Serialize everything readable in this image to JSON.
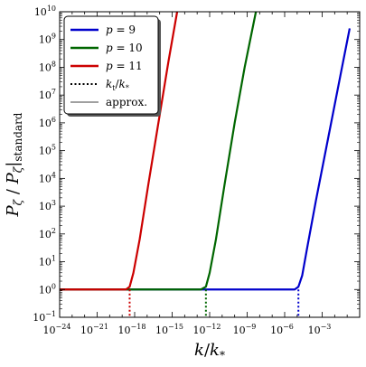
{
  "chart_data": {
    "type": "line",
    "title": "",
    "xlabel": "k/k*",
    "ylabel": "Pζ / Pζ|standard",
    "xscale": "log",
    "yscale": "log",
    "xlim_exp": [
      -24,
      0
    ],
    "ylim_exp": [
      -1,
      10
    ],
    "x_ticks": [
      {
        "exp": -24,
        "label": "10^-24"
      },
      {
        "exp": -21,
        "label": "10^-21"
      },
      {
        "exp": -18,
        "label": "10^-18"
      },
      {
        "exp": -15,
        "label": "10^-15"
      },
      {
        "exp": -12,
        "label": "10^-12"
      },
      {
        "exp": -9,
        "label": "10^-9"
      },
      {
        "exp": -6,
        "label": "10^-6"
      },
      {
        "exp": -3,
        "label": "10^-3"
      }
    ],
    "y_ticks": [
      {
        "exp": -1,
        "label": "10^-1"
      },
      {
        "exp": 0,
        "label": "10^0"
      },
      {
        "exp": 1,
        "label": "10^1"
      },
      {
        "exp": 2,
        "label": "10^2"
      },
      {
        "exp": 3,
        "label": "10^3"
      },
      {
        "exp": 4,
        "label": "10^4"
      },
      {
        "exp": 5,
        "label": "10^5"
      },
      {
        "exp": 6,
        "label": "10^6"
      },
      {
        "exp": 7,
        "label": "10^7"
      },
      {
        "exp": 8,
        "label": "10^8"
      },
      {
        "exp": 9,
        "label": "10^9"
      },
      {
        "exp": 10,
        "label": "10^10"
      }
    ],
    "series": [
      {
        "name": "p = 9",
        "color": "#0000cc",
        "x_exp": [
          -24,
          -5.2,
          -4.9,
          -4.6,
          -4.2,
          -3.5,
          -2.5,
          -1.5,
          -0.8
        ],
        "y_exp": [
          0,
          0,
          0.1,
          0.5,
          1.5,
          3.2,
          5.5,
          7.8,
          9.4
        ],
        "kt_exp": -4.9
      },
      {
        "name": "p = 10",
        "color": "#006600",
        "x_exp": [
          -24,
          -12.7,
          -12.3,
          -12.0,
          -11.5,
          -10.8,
          -10.0,
          -9.2,
          -8.3
        ],
        "y_exp": [
          0,
          0,
          0.1,
          0.6,
          1.8,
          3.8,
          6.0,
          8.0,
          10.0
        ],
        "kt_exp": -12.3
      },
      {
        "name": "p = 11",
        "color": "#cc0000",
        "x_exp": [
          -24,
          -18.7,
          -18.4,
          -18.1,
          -17.6,
          -16.9,
          -16.1,
          -15.3,
          -14.6
        ],
        "y_exp": [
          0,
          0,
          0.1,
          0.6,
          1.8,
          3.8,
          6.0,
          8.2,
          10.0
        ],
        "kt_exp": -18.4
      }
    ],
    "legend": {
      "placement": "top-left",
      "entries": [
        {
          "label": "p = 9",
          "style": "solid",
          "color": "#0000cc"
        },
        {
          "label": "p = 10",
          "style": "solid",
          "color": "#006600"
        },
        {
          "label": "p = 11",
          "style": "solid",
          "color": "#cc0000"
        },
        {
          "label": "kt/k*",
          "style": "dotted",
          "color": "#000000"
        },
        {
          "label": "approx.",
          "style": "thin",
          "color": "#000000"
        }
      ]
    }
  }
}
